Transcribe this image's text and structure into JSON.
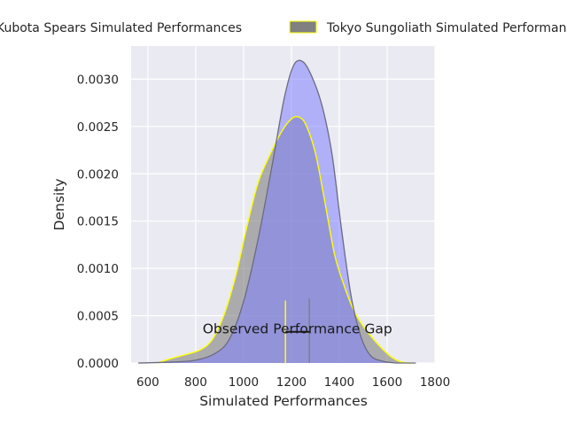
{
  "chart_data": {
    "type": "area",
    "xlabel": "Simulated Performances",
    "ylabel": "Density",
    "xlim": [
      530,
      1800
    ],
    "ylim": [
      0,
      0.00335
    ],
    "xticks": [
      "600",
      "800",
      "1000",
      "1200",
      "1400",
      "1600",
      "1800"
    ],
    "yticks": [
      "0.0000",
      "0.0005",
      "0.0010",
      "0.0015",
      "0.0020",
      "0.0025",
      "0.0030"
    ],
    "grid": true,
    "legend_position": "top-center",
    "series": [
      {
        "name": "Kubota Spears Simulated Performances",
        "fill_color": "#8080ff",
        "line_color": "#6b6b80",
        "x": [
          560,
          700,
          800,
          880,
          940,
          1000,
          1060,
          1120,
          1170,
          1210,
          1250,
          1290,
          1330,
          1370,
          1410,
          1450,
          1490,
          1530,
          1580,
          1640,
          1720
        ],
        "y": [
          0,
          1e-05,
          3e-05,
          0.0001,
          0.00025,
          0.00065,
          0.0013,
          0.0021,
          0.0028,
          0.00315,
          0.00318,
          0.003,
          0.0027,
          0.0022,
          0.0014,
          0.0007,
          0.00028,
          8e-05,
          2e-05,
          0,
          0
        ]
      },
      {
        "name": "Tokyo Sungoliath Simulated Performances",
        "fill_color": "#808080",
        "line_color": "#ffff00",
        "x": [
          640,
          700,
          760,
          820,
          870,
          920,
          970,
          1010,
          1060,
          1110,
          1160,
          1200,
          1230,
          1260,
          1300,
          1340,
          1380,
          1420,
          1460,
          1500,
          1540,
          1580,
          1620,
          1660,
          1700
        ],
        "y": [
          0,
          5e-05,
          9e-05,
          0.00014,
          0.00025,
          0.00052,
          0.00095,
          0.0014,
          0.0019,
          0.0022,
          0.00245,
          0.00258,
          0.0026,
          0.00252,
          0.00222,
          0.0017,
          0.00115,
          0.00082,
          0.00056,
          0.00039,
          0.00026,
          0.00015,
          6e-05,
          1e-05,
          0
        ]
      }
    ],
    "markers": [
      {
        "x": 1175,
        "y_top": 0.00066,
        "color": "#ffff00"
      },
      {
        "x": 1275,
        "y_top": 0.00068,
        "color": "#808080"
      }
    ],
    "annotation": {
      "text": "Observed Performance Gap",
      "x_from": 1175,
      "x_to": 1275,
      "y": 0.00033,
      "text_x": 1225,
      "text_y": 0.00036
    }
  }
}
